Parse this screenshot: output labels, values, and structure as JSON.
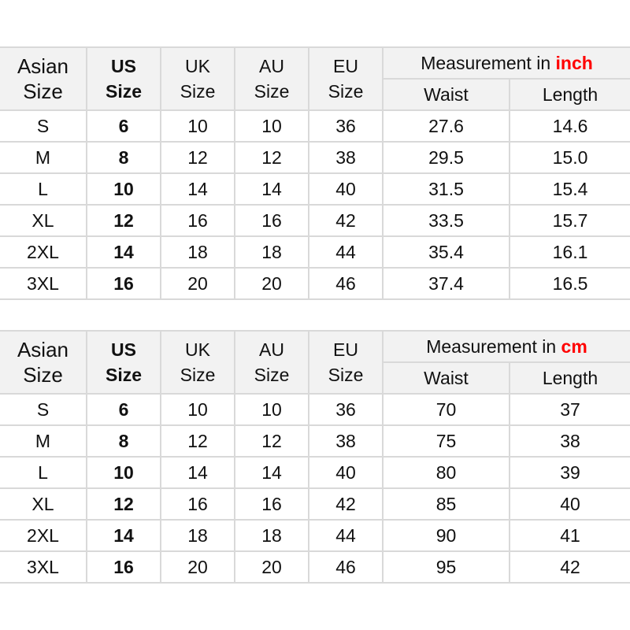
{
  "accent_color": "#ff0000",
  "headers": {
    "asian": [
      "Asian",
      "Size"
    ],
    "us": [
      "US",
      "Size"
    ],
    "uk": [
      "UK",
      "Size"
    ],
    "au": [
      "AU",
      "Size"
    ],
    "eu": [
      "EU",
      "Size"
    ],
    "measurement_prefix": "Measurement in",
    "waist": "Waist",
    "length": "Length"
  },
  "tables": [
    {
      "unit": "inch",
      "rows": [
        [
          "S",
          "6",
          "10",
          "10",
          "36",
          "27.6",
          "14.6"
        ],
        [
          "M",
          "8",
          "12",
          "12",
          "38",
          "29.5",
          "15.0"
        ],
        [
          "L",
          "10",
          "14",
          "14",
          "40",
          "31.5",
          "15.4"
        ],
        [
          "XL",
          "12",
          "16",
          "16",
          "42",
          "33.5",
          "15.7"
        ],
        [
          "2XL",
          "14",
          "18",
          "18",
          "44",
          "35.4",
          "16.1"
        ],
        [
          "3XL",
          "16",
          "20",
          "20",
          "46",
          "37.4",
          "16.5"
        ]
      ]
    },
    {
      "unit": "cm",
      "rows": [
        [
          "S",
          "6",
          "10",
          "10",
          "36",
          "70",
          "37"
        ],
        [
          "M",
          "8",
          "12",
          "12",
          "38",
          "75",
          "38"
        ],
        [
          "L",
          "10",
          "14",
          "14",
          "40",
          "80",
          "39"
        ],
        [
          "XL",
          "12",
          "16",
          "16",
          "42",
          "85",
          "40"
        ],
        [
          "2XL",
          "14",
          "18",
          "18",
          "44",
          "90",
          "41"
        ],
        [
          "3XL",
          "16",
          "20",
          "20",
          "46",
          "95",
          "42"
        ]
      ]
    }
  ]
}
